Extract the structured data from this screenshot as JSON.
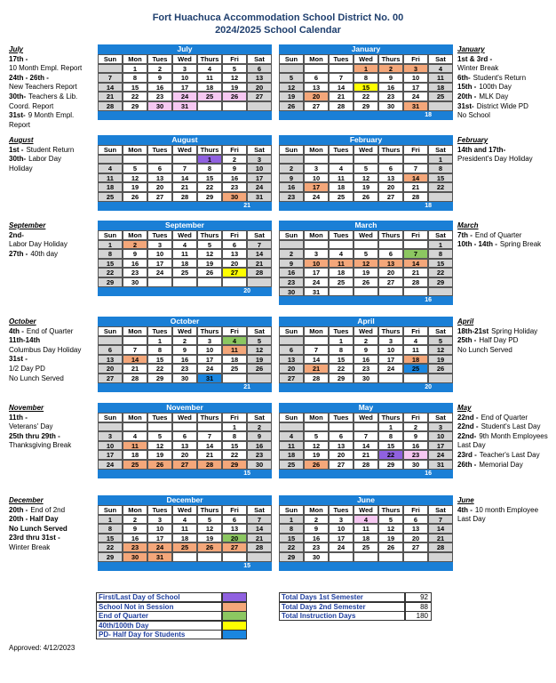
{
  "header": {
    "title": "Fort Huachuca Accommodation School District No. 00",
    "subtitle": "2024/2025  School Calendar"
  },
  "weekdays": [
    "Sun",
    "Mon",
    "Tues",
    "Wed",
    "Thurs",
    "Fri",
    "Sat"
  ],
  "colors": {
    "first_last": "#9061e0",
    "not_in_session": "#f4a77a",
    "end_quarter": "#8cc761",
    "day_40_100": "#ffff00",
    "pd_half": "#1a86e0",
    "teacher": "#f6c8f2"
  },
  "months_left": [
    {
      "name": "July",
      "weeks": [
        [
          null,
          1,
          2,
          3,
          4,
          5,
          6
        ],
        [
          7,
          8,
          9,
          10,
          11,
          12,
          13
        ],
        [
          14,
          15,
          16,
          17,
          18,
          19,
          20
        ],
        [
          21,
          22,
          23,
          24,
          25,
          26,
          27
        ],
        [
          28,
          29,
          30,
          31,
          null,
          null,
          null
        ]
      ],
      "shaded": {
        "24": "teacher",
        "25": "teacher",
        "26": "teacher",
        "30": "teacher",
        "31": "teacher"
      }
    },
    {
      "name": "August",
      "weeks": [
        [
          null,
          null,
          null,
          null,
          1,
          2,
          3
        ],
        [
          4,
          5,
          6,
          7,
          8,
          9,
          10
        ],
        [
          11,
          12,
          13,
          14,
          15,
          16,
          17
        ],
        [
          18,
          19,
          20,
          21,
          22,
          23,
          24
        ],
        [
          25,
          26,
          27,
          28,
          29,
          30,
          31
        ]
      ],
      "shaded": {
        "1": "first_last",
        "30": "not_in_session"
      },
      "total": 21
    },
    {
      "name": "September",
      "weeks": [
        [
          1,
          2,
          3,
          4,
          5,
          6,
          7
        ],
        [
          8,
          9,
          10,
          11,
          12,
          13,
          14
        ],
        [
          15,
          16,
          17,
          18,
          19,
          20,
          21
        ],
        [
          22,
          23,
          24,
          25,
          26,
          27,
          28
        ],
        [
          29,
          30,
          null,
          null,
          null,
          null,
          null
        ]
      ],
      "shaded": {
        "2": "not_in_session",
        "27": "day_40_100"
      },
      "total": 20
    },
    {
      "name": "October",
      "weeks": [
        [
          null,
          null,
          1,
          2,
          3,
          4,
          5
        ],
        [
          6,
          7,
          8,
          9,
          10,
          11,
          12
        ],
        [
          13,
          14,
          15,
          16,
          17,
          18,
          19
        ],
        [
          20,
          21,
          22,
          23,
          24,
          25,
          26
        ],
        [
          27,
          28,
          29,
          30,
          31,
          null,
          null
        ]
      ],
      "shaded": {
        "4": "end_quarter",
        "11": "not_in_session",
        "14": "not_in_session",
        "31": "pd_half"
      },
      "total": 21
    },
    {
      "name": "November",
      "weeks": [
        [
          null,
          null,
          null,
          null,
          null,
          1,
          2
        ],
        [
          3,
          4,
          5,
          6,
          7,
          8,
          9
        ],
        [
          10,
          11,
          12,
          13,
          14,
          15,
          16
        ],
        [
          17,
          18,
          19,
          20,
          21,
          22,
          23
        ],
        [
          24,
          25,
          26,
          27,
          28,
          29,
          30
        ]
      ],
      "shaded": {
        "11": "not_in_session",
        "25": "not_in_session",
        "26": "not_in_session",
        "27": "not_in_session",
        "28": "not_in_session",
        "29": "not_in_session"
      },
      "total": 15
    },
    {
      "name": "December",
      "weeks": [
        [
          1,
          2,
          3,
          4,
          5,
          6,
          7
        ],
        [
          8,
          9,
          10,
          11,
          12,
          13,
          14
        ],
        [
          15,
          16,
          17,
          18,
          19,
          20,
          21
        ],
        [
          22,
          23,
          24,
          25,
          26,
          27,
          28
        ],
        [
          29,
          30,
          31,
          null,
          null,
          null,
          null
        ]
      ],
      "shaded": {
        "20": "end_quarter",
        "23": "not_in_session",
        "24": "not_in_session",
        "25": "not_in_session",
        "26": "not_in_session",
        "27": "not_in_session",
        "30": "not_in_session",
        "31": "not_in_session"
      },
      "total": 15
    }
  ],
  "months_right": [
    {
      "name": "January",
      "weeks": [
        [
          null,
          null,
          null,
          1,
          2,
          3,
          4
        ],
        [
          5,
          6,
          7,
          8,
          9,
          10,
          11
        ],
        [
          12,
          13,
          14,
          15,
          16,
          17,
          18
        ],
        [
          19,
          20,
          21,
          22,
          23,
          24,
          25
        ],
        [
          26,
          27,
          28,
          29,
          30,
          31,
          null
        ]
      ],
      "shaded": {
        "1": "not_in_session",
        "2": "not_in_session",
        "3": "not_in_session",
        "15": "day_40_100",
        "20": "not_in_session",
        "31": "not_in_session"
      },
      "total": 18
    },
    {
      "name": "February",
      "weeks": [
        [
          null,
          null,
          null,
          null,
          null,
          null,
          1
        ],
        [
          2,
          3,
          4,
          5,
          6,
          7,
          8
        ],
        [
          9,
          10,
          11,
          12,
          13,
          14,
          15
        ],
        [
          16,
          17,
          18,
          19,
          20,
          21,
          22
        ],
        [
          23,
          24,
          25,
          26,
          27,
          28,
          null
        ]
      ],
      "shaded": {
        "14": "not_in_session",
        "17": "not_in_session"
      },
      "total": 18
    },
    {
      "name": "March",
      "weeks": [
        [
          null,
          null,
          null,
          null,
          null,
          null,
          1
        ],
        [
          2,
          3,
          4,
          5,
          6,
          7,
          8
        ],
        [
          9,
          10,
          11,
          12,
          13,
          14,
          15
        ],
        [
          16,
          17,
          18,
          19,
          20,
          21,
          22
        ],
        [
          23,
          24,
          25,
          26,
          27,
          28,
          29
        ],
        [
          30,
          31,
          null,
          null,
          null,
          null,
          null
        ]
      ],
      "shaded": {
        "7": "end_quarter",
        "10": "not_in_session",
        "11": "not_in_session",
        "12": "not_in_session",
        "13": "not_in_session",
        "14": "not_in_session"
      },
      "total": 16
    },
    {
      "name": "April",
      "weeks": [
        [
          null,
          null,
          1,
          2,
          3,
          4,
          5
        ],
        [
          6,
          7,
          8,
          9,
          10,
          11,
          12
        ],
        [
          13,
          14,
          15,
          16,
          17,
          18,
          19
        ],
        [
          20,
          21,
          22,
          23,
          24,
          25,
          26
        ],
        [
          27,
          28,
          29,
          30,
          null,
          null,
          null
        ]
      ],
      "shaded": {
        "18": "not_in_session",
        "21": "not_in_session",
        "25": "pd_half"
      },
      "total": 20
    },
    {
      "name": "May",
      "weeks": [
        [
          null,
          null,
          null,
          null,
          1,
          2,
          3
        ],
        [
          4,
          5,
          6,
          7,
          8,
          9,
          10
        ],
        [
          11,
          12,
          13,
          14,
          15,
          16,
          17
        ],
        [
          18,
          19,
          20,
          21,
          22,
          23,
          24
        ],
        [
          25,
          26,
          27,
          28,
          29,
          30,
          31
        ]
      ],
      "shaded": {
        "22": "first_last",
        "23": "teacher",
        "26": "not_in_session"
      },
      "total": 16
    },
    {
      "name": "June",
      "weeks": [
        [
          1,
          2,
          3,
          4,
          5,
          6,
          7
        ],
        [
          8,
          9,
          10,
          11,
          12,
          13,
          14
        ],
        [
          15,
          16,
          17,
          18,
          19,
          20,
          21
        ],
        [
          22,
          23,
          24,
          25,
          26,
          27,
          28
        ],
        [
          29,
          30,
          null,
          null,
          null,
          null,
          null
        ]
      ],
      "shaded": {
        "4": "teacher"
      }
    }
  ],
  "notes_left": [
    {
      "heading": "July",
      "lines": [
        {
          "lead": "17th -"
        },
        {
          "text": "10 Month Empl.  Report"
        },
        {
          "lead": "24th - 26th -"
        },
        {
          "text": "New Teachers Report"
        },
        {
          "lead": "30th-",
          "text": "Teachers & Lib."
        },
        {
          "text": "Coord. Report"
        },
        {
          "lead": "31st-",
          "text": "9 Month Empl."
        },
        {
          "text": "Report"
        }
      ]
    },
    {
      "heading": "August",
      "lines": [
        {
          "lead": "1st -",
          "text": "Student Return"
        },
        {
          "lead": "30th-",
          "text": "Labor Day"
        },
        {
          "text": "Holiday"
        }
      ]
    },
    {
      "heading": "September",
      "lines": [
        {
          "lead": "2nd-"
        },
        {
          "text": "Labor Day Holiday"
        },
        {
          "lead": "27th -",
          "text": "40th day"
        }
      ]
    },
    {
      "heading": "October",
      "lines": [
        {
          "lead": "4th -",
          "text": "End of Quarter"
        },
        {
          "lead": "11th-14th"
        },
        {
          "text": "Columbus Day Holiday"
        },
        {
          "lead": "31st -"
        },
        {
          "text": "1/2 Day PD"
        },
        {
          "text": "No Lunch Served"
        }
      ]
    },
    {
      "heading": "November",
      "lines": [
        {
          "lead": "11th -"
        },
        {
          "text": "Veterans' Day"
        },
        {
          "lead": "25th thru 29th -"
        },
        {
          "text": "Thanksgiving Break"
        }
      ]
    },
    {
      "heading": "December",
      "lines": [
        {
          "lead": "20th -",
          "text": "End of 2nd"
        },
        {
          "lead": "20th - Half Day"
        },
        {
          "lead": "No Lunch Served"
        },
        {
          "lead": "23rd thru 31st -"
        },
        {
          "text": "Winter Break"
        }
      ]
    }
  ],
  "notes_right": [
    {
      "heading": "January",
      "lines": [
        {
          "lead": "1st & 3rd -"
        },
        {
          "text": "Winter Break"
        },
        {
          "lead": "6th-",
          "text": "Student's Return"
        },
        {
          "lead": "15th -",
          "text": "100th Day"
        },
        {
          "lead": "20th -",
          "text": "MLK Day"
        },
        {
          "lead": "31st-",
          "text": "District Wide PD"
        },
        {
          "text": "No School"
        }
      ]
    },
    {
      "heading": "February",
      "lines": [
        {
          "lead": "14th and 17th-"
        },
        {
          "text": "President's Day Holiday"
        }
      ]
    },
    {
      "heading": "March",
      "lines": [
        {
          "lead": "7th -",
          "text": "End of Quarter"
        },
        {
          "lead": "10th - 14th -",
          "text": "Spring Break"
        }
      ]
    },
    {
      "heading": "April",
      "lines": [
        {
          "lead": "18th-21st",
          "text": "Spring Holiday"
        },
        {
          "lead": "25th -",
          "text": "Half Day PD"
        },
        {
          "text": "No Lunch Served"
        }
      ]
    },
    {
      "heading": "May",
      "lines": [
        {
          "lead": "22nd -",
          "text": "End of Quarter"
        },
        {
          "lead": "22nd -",
          "text": "Student's Last Day"
        },
        {
          "lead": "22nd-",
          "text": "9th Month Employees"
        },
        {
          "text": "Last Day"
        },
        {
          "lead": "23rd -",
          "text": "Teacher's Last Day"
        },
        {
          "lead": "26th -",
          "text": "Memorial Day"
        }
      ]
    },
    {
      "heading": "June",
      "lines": [
        {
          "lead": "4th -",
          "text": "10 month Employee"
        },
        {
          "text": "Last Day"
        }
      ]
    }
  ],
  "legend": [
    {
      "label": "First/Last Day of School",
      "key": "first_last"
    },
    {
      "label": "School Not in Session",
      "key": "not_in_session"
    },
    {
      "label": "End of Quarter",
      "key": "end_quarter"
    },
    {
      "label": "40th/100th Day",
      "key": "day_40_100"
    },
    {
      "label": "PD- Half Day for Students",
      "key": "pd_half"
    }
  ],
  "totals": [
    {
      "label": "Total Days 1st Semester",
      "value": 92
    },
    {
      "label": "Total Days 2nd Semester",
      "value": 88
    },
    {
      "label": "Total Instruction Days",
      "value": 180
    }
  ],
  "footer": {
    "approved": "Approved: 4/12/2023"
  }
}
